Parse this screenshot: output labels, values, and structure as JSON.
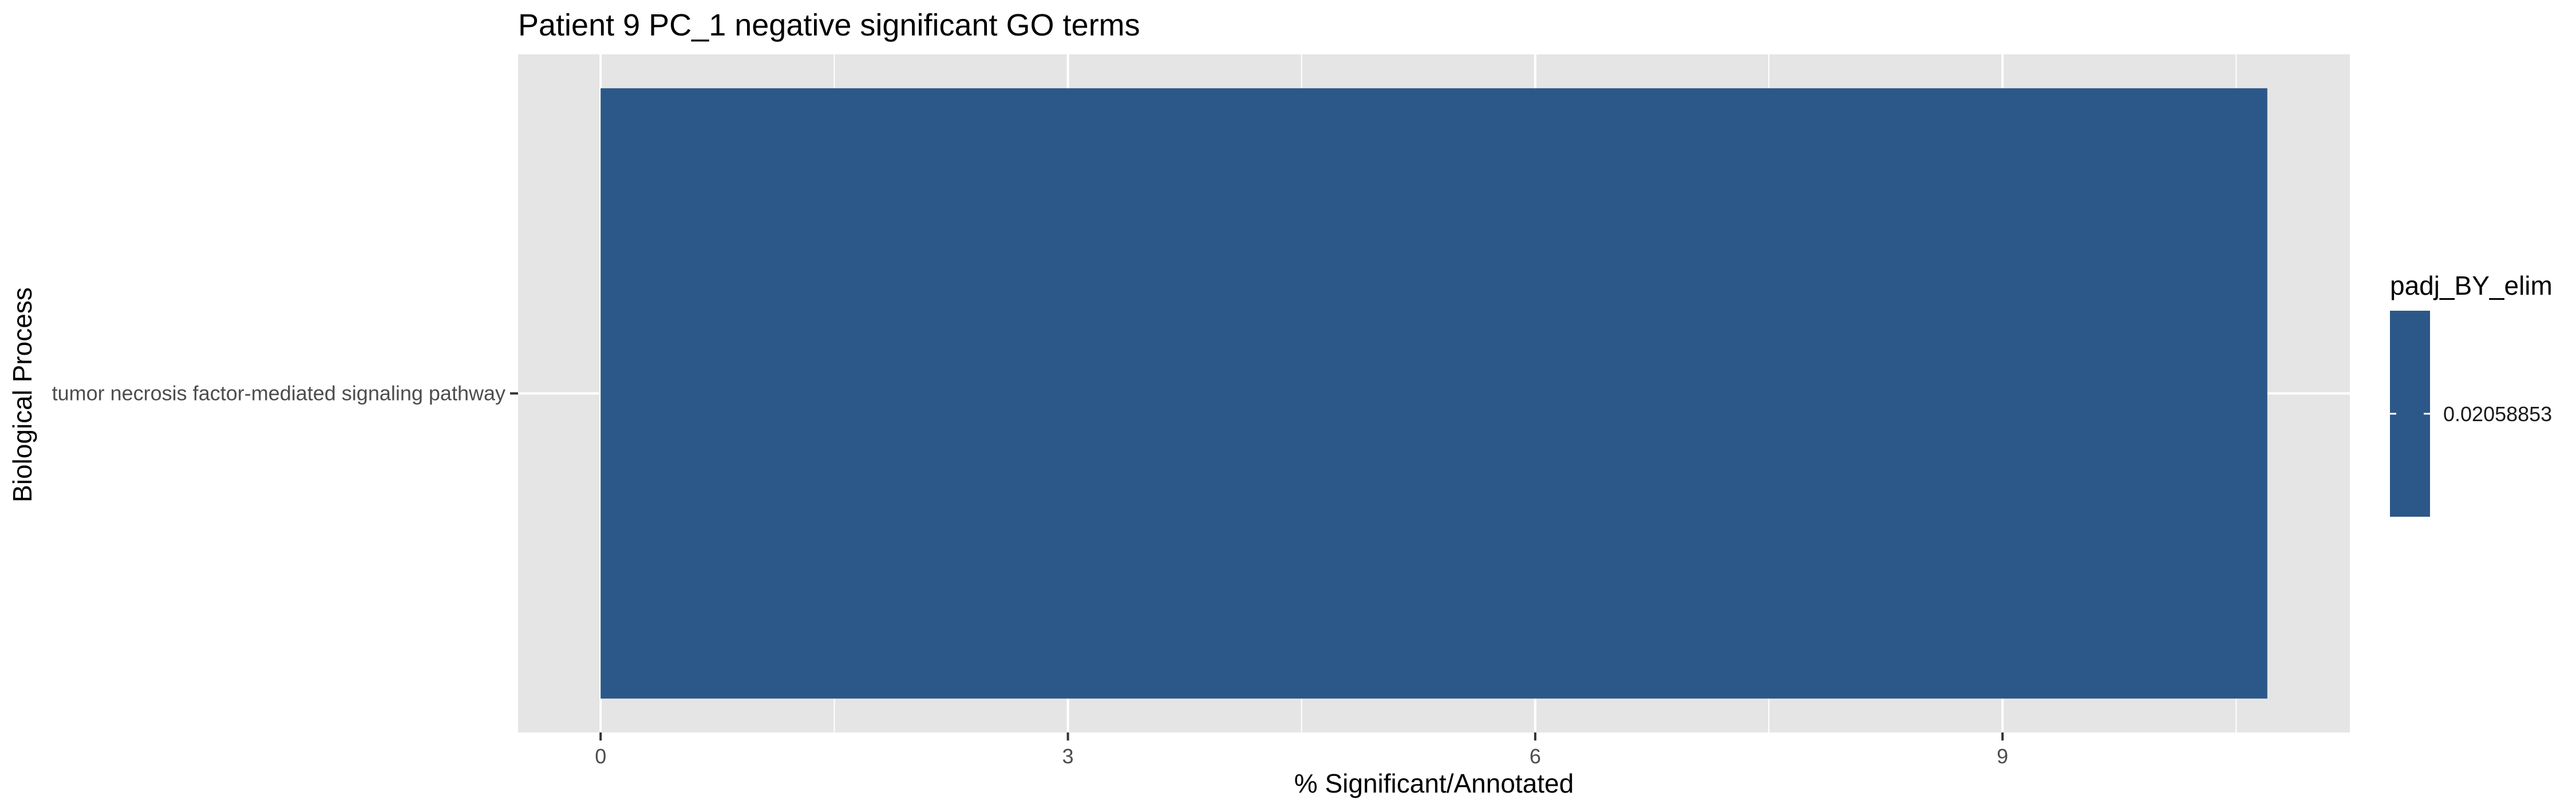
{
  "chart_data": {
    "type": "bar",
    "orientation": "horizontal",
    "title": "Patient 9 PC_1 negative significant GO terms",
    "xlabel": "% Significant/Annotated",
    "ylabel": "Biological Process",
    "categories": [
      "tumor necrosis factor-mediated signaling pathway"
    ],
    "values": [
      10.7
    ],
    "xlim": [
      -0.53,
      11.23
    ],
    "x_ticks": [
      0,
      3,
      6,
      9
    ],
    "x_tick_labels": [
      "0",
      "3",
      "6",
      "9"
    ],
    "grid": true,
    "bar_color": "#2b5888",
    "panel_background": "#e5e5e5",
    "legend": {
      "title": "padj_BY_elim",
      "placement": "right",
      "entries": [
        {
          "label": "0.02058853",
          "color": "#2b5888"
        }
      ]
    }
  }
}
